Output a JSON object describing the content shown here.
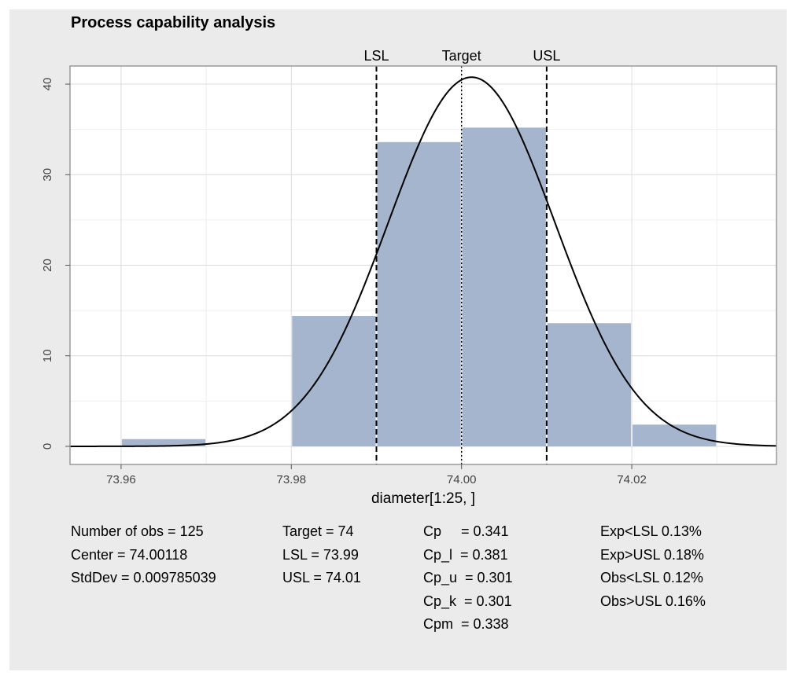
{
  "chart_data": {
    "type": "histogram",
    "title": "Process capability analysis",
    "xlabel": "diameter[1:25, ]",
    "ylabel": "",
    "xlim": [
      73.954,
      74.037
    ],
    "ylim": [
      -2,
      42
    ],
    "x_ticks": [
      {
        "value": 73.96,
        "label": "73.96"
      },
      {
        "value": 73.98,
        "label": "73.98"
      },
      {
        "value": 74.0,
        "label": "74.00"
      },
      {
        "value": 74.02,
        "label": "74.02"
      }
    ],
    "y_ticks": [
      {
        "value": 0,
        "label": "0"
      },
      {
        "value": 10,
        "label": "10"
      },
      {
        "value": 20,
        "label": "20"
      },
      {
        "value": 30,
        "label": "30"
      },
      {
        "value": 40,
        "label": "40"
      }
    ],
    "bins": [
      {
        "x0": 73.96,
        "x1": 73.97,
        "density": 0.8
      },
      {
        "x0": 73.97,
        "x1": 73.98,
        "density": 0.0
      },
      {
        "x0": 73.98,
        "x1": 73.99,
        "density": 14.4
      },
      {
        "x0": 73.99,
        "x1": 74.0,
        "density": 33.6
      },
      {
        "x0": 74.0,
        "x1": 74.01,
        "density": 35.2
      },
      {
        "x0": 74.01,
        "x1": 74.02,
        "density": 13.6
      },
      {
        "x0": 74.02,
        "x1": 74.03,
        "density": 2.4
      }
    ],
    "normal_curve": {
      "mean": 74.00118,
      "sd": 0.009785039
    },
    "spec_lines": [
      {
        "label": "LSL",
        "value": 73.99,
        "style": "dashed"
      },
      {
        "label": "Target",
        "value": 74.0,
        "style": "dotted"
      },
      {
        "label": "USL",
        "value": 74.01,
        "style": "dashed"
      }
    ],
    "grid": true,
    "colors": {
      "bar": "#a5b5cd",
      "curve": "#000000",
      "background": "#ebebeb",
      "panel": "#ffffff",
      "grid": "#dcdcdc"
    }
  },
  "stats": {
    "col1": [
      "Number of obs = 125",
      "Center = 74.00118",
      "StdDev = 0.009785039"
    ],
    "col2": [
      "Target = 74",
      "LSL = 73.99",
      "USL = 74.01"
    ],
    "col3": [
      "Cp     = 0.341",
      "Cp_l  = 0.381",
      "Cp_u  = 0.301",
      "Cp_k  = 0.301",
      "Cpm  = 0.338"
    ],
    "col4": [
      "Exp<LSL 0.13%",
      "Exp>USL 0.18%",
      "Obs<LSL 0.12%",
      "Obs>USL 0.16%"
    ]
  }
}
